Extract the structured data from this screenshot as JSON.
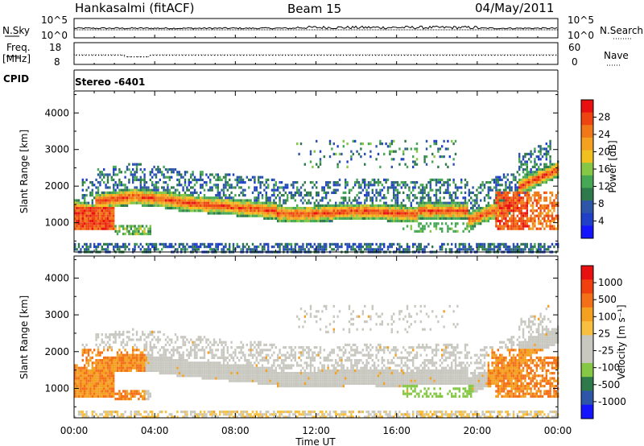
{
  "header": {
    "station": "Hankasalmi (fitACF)",
    "beam": "Beam 15",
    "date": "04/May/2011"
  },
  "top_panels": {
    "nsky_label": "N.Sky",
    "nsky_ticks": [
      "10^5",
      "10^0"
    ],
    "nsearch_label": "N.Search",
    "nsearch_ticks": [
      "10^5",
      "10^0"
    ],
    "freq_label_1": "Freq.",
    "freq_label_2": "[MHz]",
    "freq_ticks": [
      "18",
      "8"
    ],
    "nave_label": "Nave",
    "nave_ticks": [
      "60",
      "0"
    ],
    "cpid_label": "CPID",
    "cpid_value": "Stereo -6401"
  },
  "colors": {
    "power": [
      "#1414ff",
      "#2040c8",
      "#2e56a8",
      "#2f7a4a",
      "#46a855",
      "#86c846",
      "#f0c020",
      "#f4a020",
      "#f07818",
      "#ee4412",
      "#e81010"
    ],
    "velocity": [
      "#e81010",
      "#f04010",
      "#f47018",
      "#f4a020",
      "#f8c040",
      "#c8c8c0",
      "#c8c8c0",
      "#86c846",
      "#2f7a4a",
      "#2e56a8",
      "#1414ff"
    ]
  },
  "chart_data": [
    {
      "type": "heatmap",
      "name": "power-panel",
      "ylabel": "Slant Range [km]",
      "y_ticks": [
        1000,
        2000,
        3000,
        4000
      ],
      "ylim": [
        200,
        4600
      ],
      "x_range_hours": [
        0,
        24
      ],
      "colorbar_label": "Power [dB]",
      "colorbar_ticks": [
        "4",
        "8",
        "12",
        "16",
        "20",
        "24",
        "28"
      ],
      "colorbar_range": [
        0,
        32
      ]
    },
    {
      "type": "heatmap",
      "name": "velocity-panel",
      "ylabel": "Slant Range [km]",
      "y_ticks": [
        1000,
        2000,
        3000,
        4000
      ],
      "ylim": [
        200,
        4600
      ],
      "x_range_hours": [
        0,
        24
      ],
      "colorbar_label": "Velocity [m s⁻¹]",
      "colorbar_ticks": [
        "1000",
        "500",
        "100",
        "25",
        "-25",
        "-100",
        "-500",
        "-1000"
      ]
    }
  ],
  "x_axis": {
    "ticks": [
      "00:00",
      "04:00",
      "08:00",
      "12:00",
      "16:00",
      "20:00",
      "00:00"
    ],
    "label": "Time UT"
  }
}
